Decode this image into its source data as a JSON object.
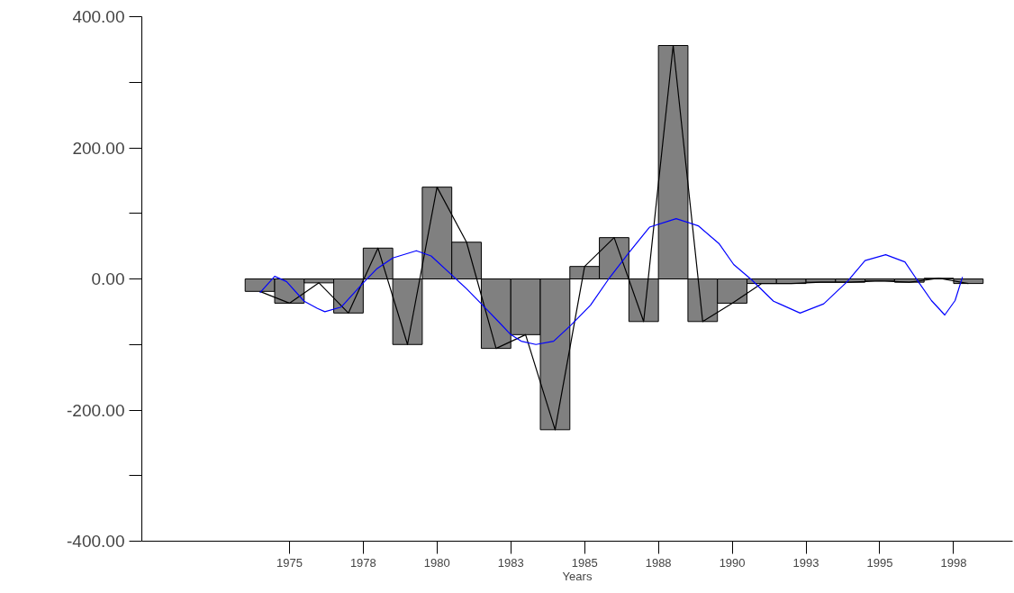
{
  "chart_data": {
    "type": "bar",
    "xlabel": "Years",
    "x": [
      1974,
      1975,
      1976,
      1977,
      1978,
      1979,
      1980,
      1981,
      1982,
      1983,
      1984,
      1985,
      1986,
      1987,
      1988,
      1989,
      1990,
      1991,
      1992,
      1993,
      1994,
      1995,
      1996,
      1997,
      1998
    ],
    "series": [
      {
        "color": "#808080",
        "values": [
          -19,
          -37,
          -6,
          -52,
          47,
          -100,
          140,
          56,
          -106,
          -85,
          -230,
          19,
          63,
          -65,
          356,
          -65,
          -37,
          -7,
          -7,
          -5,
          -5,
          -3,
          -5,
          1,
          -7
        ]
      },
      {
        "type": "line",
        "color": "#000000",
        "values": [
          -19,
          -37,
          -6,
          -52,
          47,
          -100,
          140,
          56,
          -106,
          -85,
          -230,
          19,
          63,
          -65,
          356,
          -65,
          -37,
          -7,
          -7,
          -5,
          -5,
          -3,
          -5,
          1,
          -7
        ]
      },
      {
        "type": "line",
        "color": "#0000ff",
        "x": [
          1974.0,
          1974.5,
          1974.9,
          1975.5,
          1975.95,
          1976.2,
          1976.75,
          1977.5,
          1977.95,
          1978.5,
          1979.3,
          1979.8,
          1980.45,
          1981.0,
          1981.5,
          1982.1,
          1982.5,
          1982.85,
          1983.35,
          1983.95,
          1984.55,
          1985.2,
          1985.8,
          1986.5,
          1987.2,
          1988.1,
          1988.85,
          1989.55,
          1990.05,
          1990.65,
          1991.4,
          1991.6,
          1992.3,
          1993.1,
          1993.9,
          1994.5,
          1995.2,
          1995.85,
          1996.3,
          1996.75,
          1997.2,
          1997.55,
          1997.8
        ],
        "values": [
          -21,
          4,
          -4,
          -34,
          -45,
          -50,
          -43,
          -6,
          15,
          32,
          43,
          35,
          8,
          -15,
          -38,
          -66,
          -85,
          -95,
          -100,
          -95,
          -70,
          -40,
          -1,
          40,
          79,
          92,
          81,
          54,
          22,
          -1,
          -34,
          -38,
          -52,
          -38,
          -4,
          28,
          37,
          26,
          -4,
          -33,
          -55,
          -33,
          3
        ]
      }
    ],
    "xlim": [
      1970,
      1999.5
    ],
    "xticks": [
      1975,
      {
        "value": 1977.5,
        "label": "1978"
      },
      1980,
      {
        "value": 1982.5,
        "label": "1983"
      },
      1985,
      {
        "value": 1987.5,
        "label": "1988"
      },
      1990,
      {
        "value": 1992.5,
        "label": "1993"
      },
      1995,
      {
        "value": 1997.5,
        "label": "1998"
      }
    ],
    "ylim": [
      -400,
      400
    ],
    "yticks": [
      {
        "value": -400,
        "label": "-400.00"
      },
      {
        "value": -300,
        "label": null
      },
      {
        "value": -200,
        "label": "-200.00"
      },
      {
        "value": -100,
        "label": null
      },
      {
        "value": 0,
        "label": "0.00"
      },
      {
        "value": 100,
        "label": null
      },
      {
        "value": 200,
        "label": "200.00"
      },
      {
        "value": 300,
        "label": null
      },
      {
        "value": 400,
        "label": "400.00"
      }
    ],
    "grid": false
  }
}
